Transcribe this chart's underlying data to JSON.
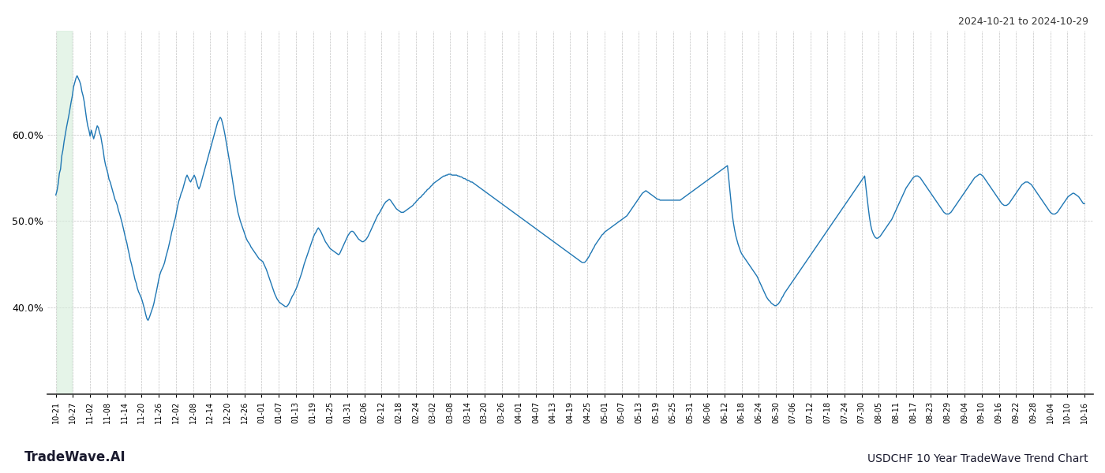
{
  "title_top_right": "2024-10-21 to 2024-10-29",
  "title_bottom_left": "TradeWave.AI",
  "title_bottom_right": "USDCHF 10 Year TradeWave Trend Chart",
  "line_color": "#1f77b4",
  "highlight_color": "#d4edda",
  "highlight_alpha": 0.6,
  "background_color": "#ffffff",
  "grid_color": "#bbbbbb",
  "ylim": [
    0.3,
    0.72
  ],
  "yticks": [
    0.4,
    0.5,
    0.6
  ],
  "xtick_labels": [
    "10-21",
    "10-27",
    "11-02",
    "11-08",
    "11-14",
    "11-20",
    "11-26",
    "12-02",
    "12-08",
    "12-14",
    "12-20",
    "12-26",
    "01-01",
    "01-07",
    "01-13",
    "01-19",
    "01-25",
    "01-31",
    "02-06",
    "02-12",
    "02-18",
    "02-24",
    "03-02",
    "03-08",
    "03-14",
    "03-20",
    "03-26",
    "04-01",
    "04-07",
    "04-13",
    "04-19",
    "04-25",
    "05-01",
    "05-07",
    "05-13",
    "05-19",
    "05-25",
    "05-31",
    "06-06",
    "06-12",
    "06-18",
    "06-24",
    "06-30",
    "07-06",
    "07-12",
    "07-18",
    "07-24",
    "07-30",
    "08-05",
    "08-11",
    "08-17",
    "08-23",
    "08-29",
    "09-04",
    "09-10",
    "09-16",
    "09-22",
    "09-28",
    "10-04",
    "10-10",
    "10-16"
  ],
  "series": [
    0.53,
    0.535,
    0.543,
    0.555,
    0.56,
    0.575,
    0.582,
    0.592,
    0.6,
    0.608,
    0.615,
    0.622,
    0.63,
    0.638,
    0.645,
    0.655,
    0.66,
    0.665,
    0.668,
    0.665,
    0.662,
    0.658,
    0.65,
    0.645,
    0.638,
    0.628,
    0.618,
    0.61,
    0.605,
    0.598,
    0.605,
    0.6,
    0.595,
    0.6,
    0.605,
    0.61,
    0.608,
    0.602,
    0.598,
    0.59,
    0.582,
    0.572,
    0.565,
    0.56,
    0.555,
    0.548,
    0.545,
    0.54,
    0.535,
    0.53,
    0.525,
    0.522,
    0.518,
    0.512,
    0.508,
    0.503,
    0.498,
    0.492,
    0.486,
    0.48,
    0.475,
    0.468,
    0.462,
    0.455,
    0.45,
    0.444,
    0.438,
    0.432,
    0.428,
    0.422,
    0.418,
    0.415,
    0.412,
    0.408,
    0.403,
    0.398,
    0.392,
    0.387,
    0.385,
    0.388,
    0.392,
    0.396,
    0.4,
    0.405,
    0.412,
    0.418,
    0.425,
    0.432,
    0.438,
    0.442,
    0.445,
    0.448,
    0.452,
    0.458,
    0.463,
    0.468,
    0.474,
    0.48,
    0.487,
    0.492,
    0.498,
    0.503,
    0.51,
    0.517,
    0.523,
    0.527,
    0.532,
    0.535,
    0.54,
    0.545,
    0.55,
    0.553,
    0.55,
    0.547,
    0.545,
    0.548,
    0.55,
    0.553,
    0.55,
    0.545,
    0.54,
    0.537,
    0.54,
    0.545,
    0.55,
    0.555,
    0.56,
    0.565,
    0.57,
    0.575,
    0.58,
    0.585,
    0.59,
    0.595,
    0.6,
    0.605,
    0.61,
    0.615,
    0.617,
    0.62,
    0.618,
    0.613,
    0.607,
    0.6,
    0.592,
    0.584,
    0.576,
    0.568,
    0.56,
    0.551,
    0.542,
    0.533,
    0.525,
    0.518,
    0.51,
    0.505,
    0.5,
    0.496,
    0.492,
    0.488,
    0.484,
    0.48,
    0.477,
    0.475,
    0.473,
    0.47,
    0.468,
    0.466,
    0.464,
    0.462,
    0.46,
    0.458,
    0.456,
    0.455,
    0.454,
    0.453,
    0.45,
    0.447,
    0.444,
    0.44,
    0.436,
    0.432,
    0.428,
    0.424,
    0.42,
    0.416,
    0.413,
    0.41,
    0.408,
    0.406,
    0.405,
    0.404,
    0.403,
    0.402,
    0.401,
    0.401,
    0.402,
    0.404,
    0.407,
    0.41,
    0.413,
    0.415,
    0.418,
    0.421,
    0.424,
    0.428,
    0.432,
    0.436,
    0.44,
    0.445,
    0.45,
    0.454,
    0.458,
    0.462,
    0.466,
    0.47,
    0.474,
    0.478,
    0.482,
    0.485,
    0.487,
    0.49,
    0.492,
    0.49,
    0.488,
    0.485,
    0.482,
    0.479,
    0.476,
    0.474,
    0.472,
    0.47,
    0.468,
    0.467,
    0.466,
    0.465,
    0.464,
    0.463,
    0.462,
    0.461,
    0.462,
    0.465,
    0.468,
    0.471,
    0.474,
    0.477,
    0.48,
    0.483,
    0.485,
    0.487,
    0.488,
    0.488,
    0.487,
    0.485,
    0.483,
    0.481,
    0.479,
    0.478,
    0.477,
    0.476,
    0.476,
    0.477,
    0.478,
    0.48,
    0.482,
    0.485,
    0.488,
    0.491,
    0.494,
    0.497,
    0.5,
    0.503,
    0.506,
    0.508,
    0.51,
    0.513,
    0.515,
    0.518,
    0.52,
    0.522,
    0.523,
    0.524,
    0.525,
    0.524,
    0.522,
    0.52,
    0.518,
    0.516,
    0.514,
    0.513,
    0.512,
    0.511,
    0.51,
    0.51,
    0.51,
    0.511,
    0.512,
    0.513,
    0.514,
    0.515,
    0.516,
    0.517,
    0.518,
    0.52,
    0.521,
    0.523,
    0.524,
    0.526,
    0.527,
    0.528,
    0.53,
    0.531,
    0.533,
    0.534,
    0.536,
    0.537,
    0.538,
    0.54,
    0.541,
    0.543,
    0.544,
    0.545,
    0.546,
    0.547,
    0.548,
    0.549,
    0.55,
    0.551,
    0.552,
    0.552,
    0.553,
    0.553,
    0.554,
    0.554,
    0.554,
    0.553,
    0.553,
    0.553,
    0.553,
    0.553,
    0.552,
    0.552,
    0.551,
    0.551,
    0.55,
    0.549,
    0.549,
    0.548,
    0.547,
    0.547,
    0.546,
    0.545,
    0.545,
    0.544,
    0.543,
    0.542,
    0.541,
    0.54,
    0.539,
    0.538,
    0.537,
    0.536,
    0.535,
    0.534,
    0.533,
    0.532,
    0.531,
    0.53,
    0.529,
    0.528,
    0.527,
    0.526,
    0.525,
    0.524,
    0.523,
    0.522,
    0.521,
    0.52,
    0.519,
    0.518,
    0.517,
    0.516,
    0.515,
    0.514,
    0.513,
    0.512,
    0.511,
    0.51,
    0.509,
    0.508,
    0.507,
    0.506,
    0.505,
    0.504,
    0.503,
    0.502,
    0.501,
    0.5,
    0.499,
    0.498,
    0.497,
    0.496,
    0.495,
    0.494,
    0.493,
    0.492,
    0.491,
    0.49,
    0.489,
    0.488,
    0.487,
    0.486,
    0.485,
    0.484,
    0.483,
    0.482,
    0.481,
    0.48,
    0.479,
    0.478,
    0.477,
    0.476,
    0.475,
    0.474,
    0.473,
    0.472,
    0.471,
    0.47,
    0.469,
    0.468,
    0.467,
    0.466,
    0.465,
    0.464,
    0.463,
    0.462,
    0.461,
    0.46,
    0.459,
    0.458,
    0.457,
    0.456,
    0.455,
    0.454,
    0.453,
    0.452,
    0.452,
    0.452,
    0.453,
    0.455,
    0.457,
    0.459,
    0.462,
    0.464,
    0.467,
    0.469,
    0.472,
    0.474,
    0.476,
    0.478,
    0.48,
    0.482,
    0.484,
    0.485,
    0.487,
    0.488,
    0.489,
    0.49,
    0.491,
    0.492,
    0.493,
    0.494,
    0.495,
    0.496,
    0.497,
    0.498,
    0.499,
    0.5,
    0.501,
    0.502,
    0.503,
    0.504,
    0.505,
    0.506,
    0.508,
    0.51,
    0.512,
    0.514,
    0.516,
    0.518,
    0.52,
    0.522,
    0.524,
    0.526,
    0.528,
    0.53,
    0.532,
    0.533,
    0.534,
    0.535,
    0.534,
    0.533,
    0.532,
    0.531,
    0.53,
    0.529,
    0.528,
    0.527,
    0.526,
    0.525,
    0.525,
    0.524,
    0.524,
    0.524,
    0.524,
    0.524,
    0.524,
    0.524,
    0.524,
    0.524,
    0.524,
    0.524,
    0.524,
    0.524,
    0.524,
    0.524,
    0.524,
    0.524,
    0.524,
    0.525,
    0.526,
    0.527,
    0.528,
    0.529,
    0.53,
    0.531,
    0.532,
    0.533,
    0.534,
    0.535,
    0.536,
    0.537,
    0.538,
    0.539,
    0.54,
    0.541,
    0.542,
    0.543,
    0.544,
    0.545,
    0.546,
    0.547,
    0.548,
    0.549,
    0.55,
    0.551,
    0.552,
    0.553,
    0.554,
    0.555,
    0.556,
    0.557,
    0.558,
    0.559,
    0.56,
    0.561,
    0.562,
    0.563,
    0.564,
    0.55,
    0.536,
    0.522,
    0.508,
    0.498,
    0.49,
    0.483,
    0.478,
    0.473,
    0.469,
    0.465,
    0.462,
    0.46,
    0.458,
    0.456,
    0.454,
    0.452,
    0.45,
    0.448,
    0.446,
    0.444,
    0.442,
    0.44,
    0.438,
    0.436,
    0.433,
    0.43,
    0.427,
    0.424,
    0.421,
    0.418,
    0.415,
    0.412,
    0.41,
    0.408,
    0.407,
    0.405,
    0.404,
    0.403,
    0.402,
    0.402,
    0.403,
    0.404,
    0.406,
    0.408,
    0.411,
    0.413,
    0.416,
    0.418,
    0.42,
    0.422,
    0.424,
    0.426,
    0.428,
    0.43,
    0.432,
    0.434,
    0.436,
    0.438,
    0.44,
    0.442,
    0.444,
    0.446,
    0.448,
    0.45,
    0.452,
    0.454,
    0.456,
    0.458,
    0.46,
    0.462,
    0.464,
    0.466,
    0.468,
    0.47,
    0.472,
    0.474,
    0.476,
    0.478,
    0.48,
    0.482,
    0.484,
    0.486,
    0.488,
    0.49,
    0.492,
    0.494,
    0.496,
    0.498,
    0.5,
    0.502,
    0.504,
    0.506,
    0.508,
    0.51,
    0.512,
    0.514,
    0.516,
    0.518,
    0.52,
    0.522,
    0.524,
    0.526,
    0.528,
    0.53,
    0.532,
    0.534,
    0.536,
    0.538,
    0.54,
    0.542,
    0.544,
    0.546,
    0.548,
    0.55,
    0.552,
    0.54,
    0.528,
    0.516,
    0.505,
    0.496,
    0.49,
    0.486,
    0.483,
    0.481,
    0.48,
    0.48,
    0.481,
    0.482,
    0.484,
    0.486,
    0.488,
    0.49,
    0.492,
    0.494,
    0.496,
    0.498,
    0.5,
    0.502,
    0.505,
    0.508,
    0.511,
    0.514,
    0.517,
    0.52,
    0.523,
    0.526,
    0.529,
    0.532,
    0.535,
    0.538,
    0.54,
    0.542,
    0.544,
    0.546,
    0.548,
    0.55,
    0.551,
    0.552,
    0.552,
    0.552,
    0.551,
    0.55,
    0.548,
    0.546,
    0.544,
    0.542,
    0.54,
    0.538,
    0.536,
    0.534,
    0.532,
    0.53,
    0.528,
    0.526,
    0.524,
    0.522,
    0.52,
    0.518,
    0.516,
    0.514,
    0.512,
    0.51,
    0.509,
    0.508,
    0.508,
    0.508,
    0.509,
    0.51,
    0.512,
    0.514,
    0.516,
    0.518,
    0.52,
    0.522,
    0.524,
    0.526,
    0.528,
    0.53,
    0.532,
    0.534,
    0.536,
    0.538,
    0.54,
    0.542,
    0.544,
    0.546,
    0.548,
    0.55,
    0.551,
    0.552,
    0.553,
    0.554,
    0.554,
    0.553,
    0.552,
    0.55,
    0.548,
    0.546,
    0.544,
    0.542,
    0.54,
    0.538,
    0.536,
    0.534,
    0.532,
    0.53,
    0.528,
    0.526,
    0.524,
    0.522,
    0.52,
    0.519,
    0.518,
    0.518,
    0.518,
    0.519,
    0.52,
    0.522,
    0.524,
    0.526,
    0.528,
    0.53,
    0.532,
    0.534,
    0.536,
    0.538,
    0.54,
    0.542,
    0.543,
    0.544,
    0.545,
    0.545,
    0.545,
    0.544,
    0.543,
    0.542,
    0.54,
    0.538,
    0.536,
    0.534,
    0.532,
    0.53,
    0.528,
    0.526,
    0.524,
    0.522,
    0.52,
    0.518,
    0.516,
    0.514,
    0.512,
    0.51,
    0.509,
    0.508,
    0.508,
    0.508,
    0.509,
    0.51,
    0.512,
    0.514,
    0.516,
    0.518,
    0.52,
    0.522,
    0.524,
    0.526,
    0.528,
    0.529,
    0.53,
    0.531,
    0.532,
    0.532,
    0.531,
    0.53,
    0.529,
    0.528,
    0.526,
    0.524,
    0.522,
    0.52,
    0.52
  ],
  "highlight_xstart": 0.05,
  "highlight_xend": 0.95
}
